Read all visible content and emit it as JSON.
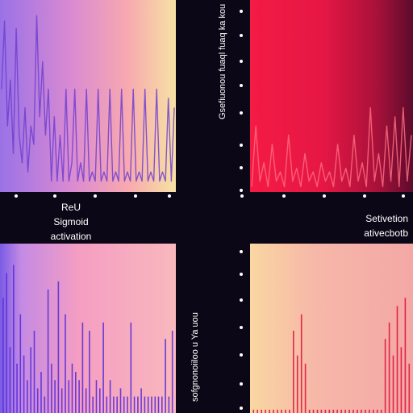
{
  "chart_data": [
    {
      "type": "line",
      "panel": "top-left",
      "x": [
        0,
        1,
        2,
        3,
        4,
        5,
        6,
        7,
        8,
        9,
        10,
        11,
        12,
        13,
        14,
        15,
        16,
        17,
        18,
        19,
        20,
        21,
        22,
        23,
        24,
        25,
        26,
        27,
        28,
        29,
        30,
        31,
        32,
        33,
        34,
        35,
        36,
        37,
        38,
        39,
        40,
        41,
        42,
        43,
        44,
        45,
        46,
        47,
        48,
        49,
        50,
        51,
        52,
        53,
        54,
        55,
        56,
        57,
        58,
        59
      ],
      "series": [
        {
          "values": [
            0.55,
            0.92,
            0.35,
            0.6,
            0.2,
            0.88,
            0.3,
            0.15,
            0.45,
            0.1,
            0.35,
            0.25,
            0.95,
            0.4,
            0.7,
            0.3,
            0.55,
            0.05,
            0.4,
            0.05,
            0.3,
            0.05,
            0.55,
            0.05,
            0.15,
            0.55,
            0.05,
            0.15,
            0.05,
            0.55,
            0.05,
            0.1,
            0.05,
            0.55,
            0.05,
            0.1,
            0.05,
            0.55,
            0.05,
            0.1,
            0.05,
            0.55,
            0.05,
            0.1,
            0.05,
            0.55,
            0.05,
            0.1,
            0.05,
            0.55,
            0.05,
            0.1,
            0.05,
            0.55,
            0.05,
            0.1,
            0.05,
            0.5,
            0.05,
            0.45
          ]
        }
      ],
      "ylim": [
        0,
        1
      ],
      "colors": [
        "#6e3fd0"
      ]
    },
    {
      "type": "line",
      "panel": "top-right",
      "x": [
        0,
        1,
        2,
        3,
        4,
        5,
        6,
        7,
        8,
        9,
        10,
        11,
        12,
        13,
        14,
        15,
        16,
        17,
        18,
        19,
        20,
        21,
        22,
        23,
        24,
        25,
        26,
        27,
        28,
        29,
        30,
        31,
        32,
        33,
        34,
        35,
        36,
        37,
        38,
        39
      ],
      "series": [
        {
          "values": [
            0.02,
            0.35,
            0.05,
            0.15,
            0.02,
            0.25,
            0.05,
            0.1,
            0.02,
            0.3,
            0.05,
            0.12,
            0.02,
            0.2,
            0.05,
            0.1,
            0.02,
            0.15,
            0.05,
            0.1,
            0.02,
            0.25,
            0.05,
            0.12,
            0.02,
            0.3,
            0.05,
            0.15,
            0.02,
            0.45,
            0.05,
            0.2,
            0.02,
            0.35,
            0.05,
            0.4,
            0.02,
            0.45,
            0.05,
            0.3
          ]
        }
      ],
      "ylim": [
        0,
        1
      ],
      "colors": [
        "#ff6a80"
      ]
    },
    {
      "type": "bar",
      "panel": "bottom-left",
      "x": [
        0,
        1,
        2,
        3,
        4,
        5,
        6,
        7,
        8,
        9,
        10,
        11,
        12,
        13,
        14,
        15,
        16,
        17,
        18,
        19,
        20,
        21,
        22,
        23,
        24,
        25,
        26,
        27,
        28,
        29,
        30,
        31,
        32,
        33,
        34,
        35,
        36,
        37,
        38,
        39,
        40,
        41,
        42,
        43,
        44,
        45,
        46,
        47,
        48,
        49
      ],
      "values": [
        0.7,
        0.85,
        0.4,
        0.9,
        0.3,
        0.6,
        0.35,
        0.2,
        0.4,
        0.5,
        0.15,
        0.25,
        0.1,
        0.75,
        0.3,
        0.2,
        0.8,
        0.15,
        0.6,
        0.2,
        0.3,
        0.25,
        0.2,
        0.55,
        0.15,
        0.5,
        0.1,
        0.2,
        0.15,
        0.55,
        0.1,
        0.2,
        0.1,
        0.1,
        0.15,
        0.1,
        0.1,
        0.55,
        0.1,
        0.1,
        0.15,
        0.1,
        0.1,
        0.1,
        0.1,
        0.1,
        0.1,
        0.45,
        0.1,
        0.5
      ],
      "ylim": [
        0,
        1
      ],
      "colors": [
        "#5b2fd8"
      ]
    },
    {
      "type": "bar",
      "panel": "bottom-right",
      "x": [
        0,
        1,
        2,
        3,
        4,
        5,
        6,
        7,
        8,
        9,
        10,
        11,
        12,
        13,
        14,
        15,
        16,
        17,
        18,
        19,
        20,
        21,
        22,
        23,
        24,
        25,
        26,
        27,
        28,
        29,
        30,
        31,
        32,
        33,
        34,
        35,
        36,
        37,
        38,
        39
      ],
      "values": [
        0.02,
        0.02,
        0.02,
        0.02,
        0.02,
        0.02,
        0.02,
        0.02,
        0.02,
        0.02,
        0.5,
        0.35,
        0.6,
        0.3,
        0.02,
        0.02,
        0.02,
        0.02,
        0.02,
        0.02,
        0.02,
        0.02,
        0.02,
        0.02,
        0.02,
        0.02,
        0.02,
        0.02,
        0.02,
        0.02,
        0.02,
        0.02,
        0.02,
        0.45,
        0.55,
        0.35,
        0.65,
        0.4,
        0.7,
        0.3
      ],
      "ylim": [
        0,
        1
      ],
      "colors": [
        "#e0153f"
      ]
    }
  ],
  "legend_left": {
    "line1": "ReU",
    "line2": "Sigmoid",
    "line3": "activation"
  },
  "legend_right": {
    "line1": "Setivetion",
    "line2": "ativecbotb"
  },
  "vertical_label_top": "Gsefiuonou fuaql fuaq ka kou",
  "vertical_label_bottom": "sofgnonoiiloo u Ya uou",
  "colors": {
    "background": "#0c0716",
    "tick_dot": "#ffffff"
  }
}
